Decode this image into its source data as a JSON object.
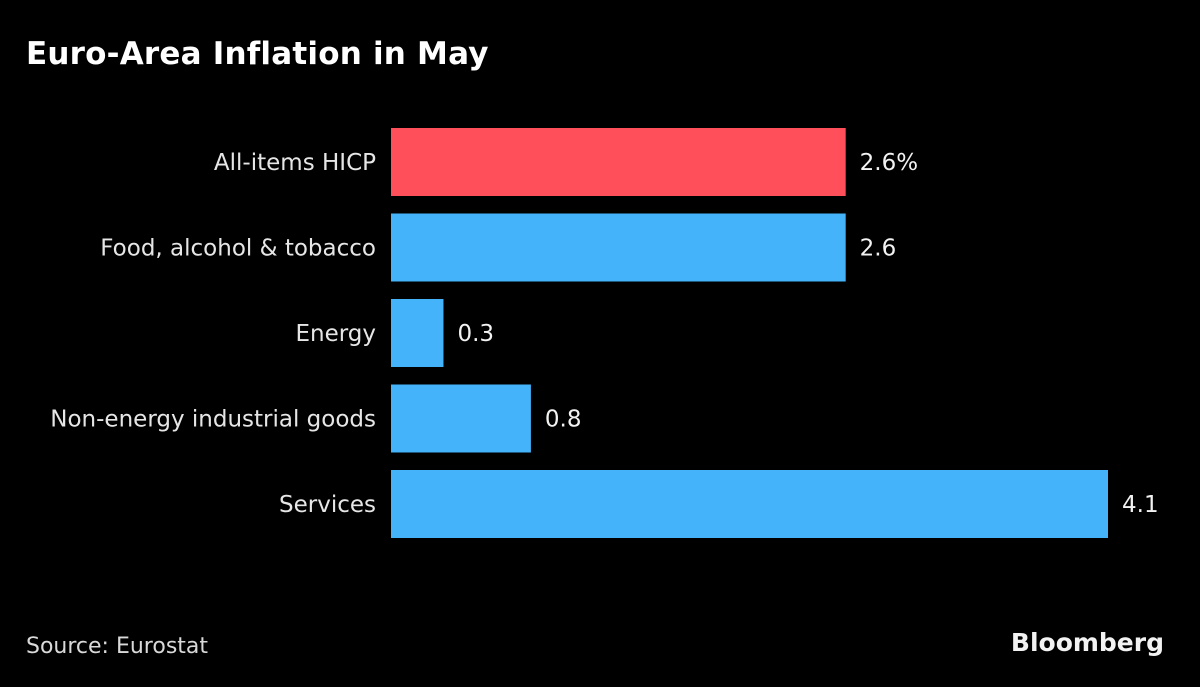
{
  "chart_data": {
    "type": "bar",
    "orientation": "horizontal",
    "title": "Euro-Area Inflation in May",
    "categories": [
      "All-items HICP",
      "Food, alcohol & tobacco",
      "Energy",
      "Non-energy industrial goods",
      "Services"
    ],
    "values": [
      2.6,
      2.6,
      0.3,
      0.8,
      4.1
    ],
    "value_labels": [
      "2.6%",
      "2.6",
      "0.3",
      "0.8",
      "4.1"
    ],
    "colors": [
      "#ff4f5a",
      "#45b3fa",
      "#45b3fa",
      "#45b3fa",
      "#45b3fa"
    ],
    "xlabel": "",
    "ylabel": "",
    "xlim": [
      0,
      4.1
    ],
    "grid": false,
    "legend": "none"
  },
  "footer": {
    "source": "Source: Eurostat",
    "brand": "Bloomberg"
  }
}
